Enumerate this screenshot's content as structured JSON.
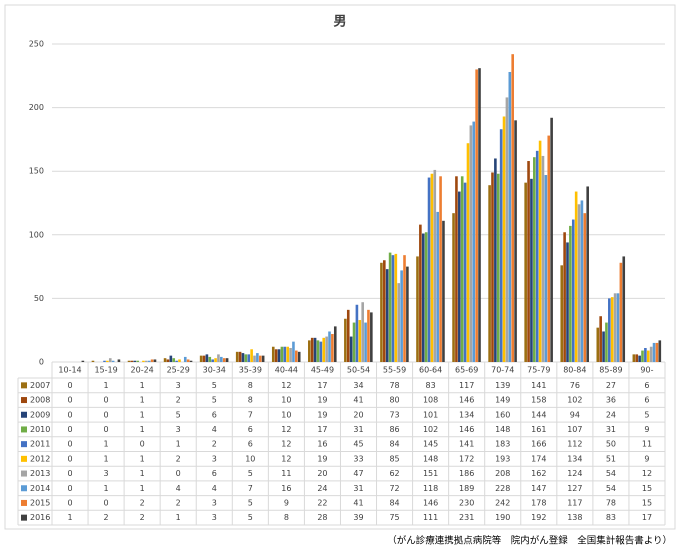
{
  "chart_data": {
    "type": "bar",
    "title": "男",
    "categories": [
      "10-14",
      "15-19",
      "20-24",
      "25-29",
      "30-34",
      "35-39",
      "40-44",
      "45-49",
      "50-54",
      "55-59",
      "60-64",
      "65-69",
      "70-74",
      "75-79",
      "80-84",
      "85-89",
      "90-"
    ],
    "series": [
      {
        "name": "2007",
        "color": "#9c6f12",
        "values": [
          0,
          1,
          1,
          3,
          5,
          8,
          12,
          17,
          34,
          78,
          83,
          117,
          139,
          141,
          76,
          27,
          6
        ]
      },
      {
        "name": "2008",
        "color": "#9e480e",
        "values": [
          0,
          0,
          1,
          2,
          5,
          8,
          10,
          19,
          41,
          80,
          108,
          146,
          149,
          158,
          102,
          36,
          6
        ]
      },
      {
        "name": "2009",
        "color": "#264478",
        "values": [
          0,
          0,
          1,
          5,
          6,
          7,
          10,
          19,
          20,
          73,
          101,
          134,
          160,
          144,
          94,
          24,
          5
        ]
      },
      {
        "name": "2010",
        "color": "#70ad47",
        "values": [
          0,
          0,
          1,
          3,
          4,
          6,
          12,
          17,
          31,
          86,
          102,
          146,
          148,
          161,
          107,
          31,
          9
        ]
      },
      {
        "name": "2011",
        "color": "#4472c4",
        "values": [
          0,
          1,
          0,
          1,
          2,
          6,
          12,
          16,
          45,
          84,
          145,
          141,
          183,
          166,
          112,
          50,
          11
        ]
      },
      {
        "name": "2012",
        "color": "#ffc000",
        "values": [
          0,
          1,
          1,
          2,
          3,
          10,
          12,
          19,
          33,
          85,
          148,
          172,
          193,
          174,
          134,
          51,
          9
        ]
      },
      {
        "name": "2013",
        "color": "#a5a5a5",
        "values": [
          0,
          3,
          1,
          0,
          6,
          5,
          11,
          20,
          47,
          62,
          151,
          186,
          208,
          162,
          124,
          54,
          12
        ]
      },
      {
        "name": "2014",
        "color": "#5b9bd5",
        "values": [
          0,
          1,
          1,
          4,
          4,
          7,
          16,
          24,
          31,
          72,
          118,
          189,
          228,
          147,
          127,
          54,
          15
        ]
      },
      {
        "name": "2015",
        "color": "#ed7d31",
        "values": [
          0,
          0,
          2,
          2,
          3,
          5,
          9,
          22,
          41,
          84,
          146,
          230,
          242,
          178,
          117,
          78,
          15
        ]
      },
      {
        "name": "2016",
        "color": "#404040",
        "values": [
          1,
          2,
          2,
          1,
          3,
          5,
          8,
          28,
          39,
          75,
          111,
          231,
          190,
          192,
          138,
          83,
          17
        ]
      }
    ],
    "ylim": [
      0,
      250
    ],
    "yticks": [
      0,
      50,
      100,
      150,
      200,
      250
    ],
    "grid": true,
    "source": "（がん診療連携拠点病院等　院内がん登録　全国集計報告書より）"
  }
}
